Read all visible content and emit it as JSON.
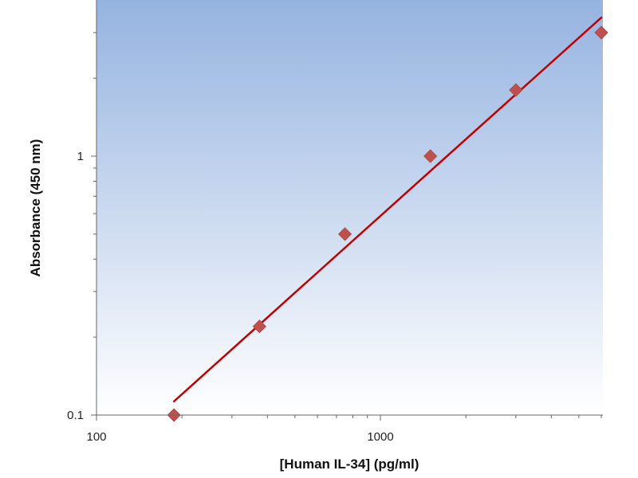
{
  "chart_data": {
    "type": "scatter",
    "title": "",
    "xlabel": "[Human IL-34] (pg/ml)",
    "ylabel": "Absorbance (450 nm)",
    "x_scale": "log",
    "y_scale": "log",
    "xlim": [
      100,
      6000
    ],
    "ylim": [
      0.1,
      3.5
    ],
    "x_tick_labels": [
      {
        "value": 100,
        "label": "100"
      },
      {
        "value": 1000,
        "label": "1000"
      }
    ],
    "y_tick_labels": [
      {
        "value": 0.1,
        "label": "0.1"
      },
      {
        "value": 1,
        "label": "1"
      }
    ],
    "points": [
      {
        "x": 187.5,
        "y": 0.1
      },
      {
        "x": 375,
        "y": 0.22
      },
      {
        "x": 750,
        "y": 0.5
      },
      {
        "x": 1500,
        "y": 1.0
      },
      {
        "x": 3000,
        "y": 1.8
      },
      {
        "x": 6000,
        "y": 3.0
      }
    ],
    "fit_line": {
      "x": [
        187.5,
        6000
      ],
      "y": [
        0.113,
        3.43
      ]
    },
    "grid": false,
    "legend": "none",
    "marker_color": "#c0504d",
    "line_color": "#c00000",
    "background_gradient": [
      "#95b3e0",
      "#ffffff"
    ]
  }
}
